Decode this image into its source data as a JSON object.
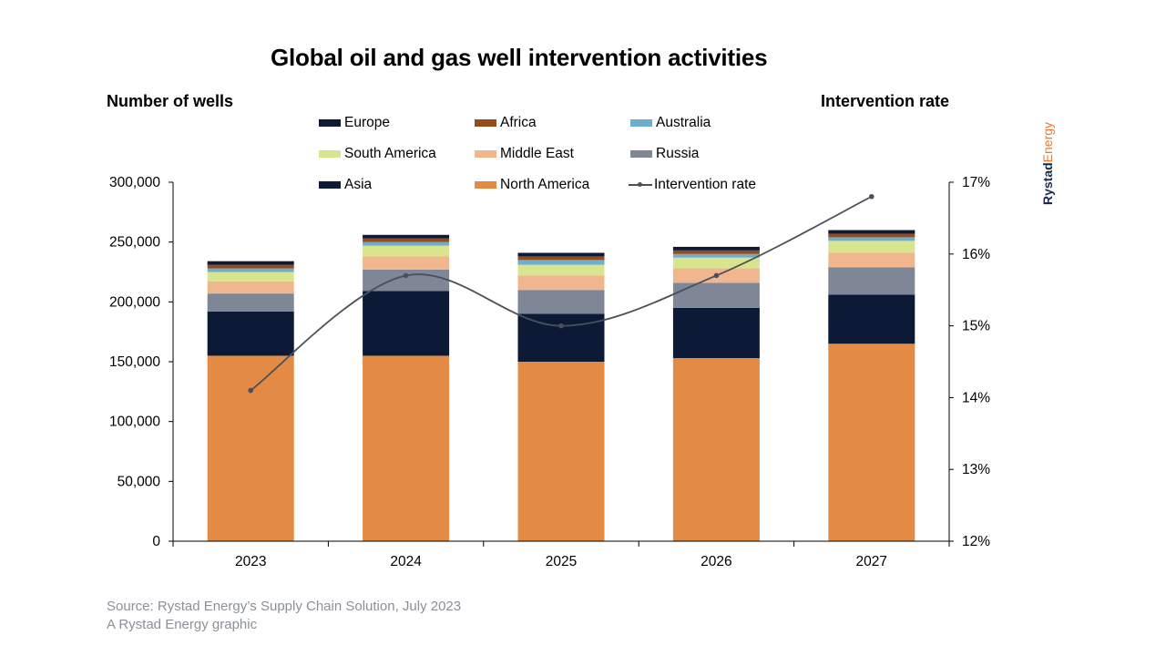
{
  "title": "Global oil and gas well intervention activities",
  "brand": {
    "part1": "Rystad",
    "part2": "Energy"
  },
  "source": {
    "line1": "Source: Rystad Energy’s Supply Chain Solution, July 2023",
    "line2": "A Rystad Energy graphic"
  },
  "chart_data": {
    "type": "bar",
    "stacked": true,
    "title": "Global oil and gas well intervention activities",
    "ylabel": "Number of wells",
    "y2label": "Intervention rate",
    "categories": [
      "2023",
      "2024",
      "2025",
      "2026",
      "2027"
    ],
    "ylim": [
      0,
      300000
    ],
    "yticks": [
      0,
      50000,
      100000,
      150000,
      200000,
      250000,
      300000
    ],
    "ytick_labels": [
      "0",
      "50,000",
      "100,000",
      "150,000",
      "200,000",
      "250,000",
      "300,000"
    ],
    "y2lim": [
      12,
      17
    ],
    "y2ticks": [
      12,
      13,
      14,
      15,
      16,
      17
    ],
    "y2tick_labels": [
      "12%",
      "13%",
      "14%",
      "15%",
      "16%",
      "17%"
    ],
    "legend_position": "top",
    "series": [
      {
        "name": "North America",
        "color": "#e38a45",
        "values": [
          155000,
          155000,
          150000,
          153000,
          165000
        ]
      },
      {
        "name": "Asia",
        "color": "#0c1a36",
        "values": [
          37000,
          54000,
          40000,
          42000,
          41000
        ]
      },
      {
        "name": "Russia",
        "color": "#7f8797",
        "values": [
          15000,
          18000,
          20000,
          21000,
          23000
        ]
      },
      {
        "name": "Middle East",
        "color": "#f2b68f",
        "values": [
          10000,
          11000,
          12000,
          12000,
          12000
        ]
      },
      {
        "name": "South America",
        "color": "#d9e48f",
        "values": [
          8000,
          9000,
          9000,
          9000,
          10000
        ]
      },
      {
        "name": "Australia",
        "color": "#6eaecb",
        "values": [
          3000,
          3000,
          4000,
          3000,
          3000
        ]
      },
      {
        "name": "Africa",
        "color": "#944c1f",
        "values": [
          3000,
          3000,
          3000,
          3000,
          3000
        ]
      },
      {
        "name": "Europe",
        "color": "#0c1a36",
        "values": [
          3000,
          3000,
          3000,
          3000,
          3000
        ]
      }
    ],
    "line": {
      "name": "Intervention rate",
      "color": "#4a4f58",
      "axis": "right",
      "values": [
        14.1,
        15.7,
        15.0,
        15.7,
        16.8
      ]
    }
  },
  "legend": {
    "items": [
      {
        "label": "Europe",
        "color": "#0c1a36",
        "kind": "box"
      },
      {
        "label": "Africa",
        "color": "#944c1f",
        "kind": "box"
      },
      {
        "label": "Australia",
        "color": "#6eaecb",
        "kind": "box"
      },
      {
        "label": "South America",
        "color": "#d9e48f",
        "kind": "box"
      },
      {
        "label": "Middle East",
        "color": "#f2b68f",
        "kind": "box"
      },
      {
        "label": "Russia",
        "color": "#7f8797",
        "kind": "box"
      },
      {
        "label": "Asia",
        "color": "#0c1a36",
        "kind": "box"
      },
      {
        "label": "North America",
        "color": "#e38a45",
        "kind": "box"
      },
      {
        "label": "Intervention rate",
        "color": "#4a4f58",
        "kind": "line"
      }
    ]
  }
}
